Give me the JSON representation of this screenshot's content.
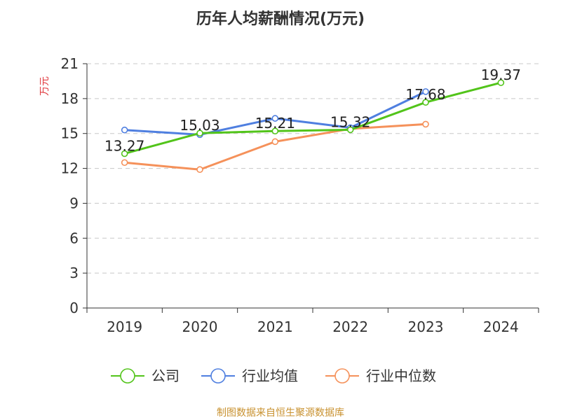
{
  "chart_data": {
    "type": "line",
    "title": "历年人均薪酬情况(万元)",
    "ylabel": "万元",
    "xlabel": "",
    "categories": [
      "2019",
      "2020",
      "2021",
      "2022",
      "2023",
      "2024"
    ],
    "ylim": [
      0,
      21
    ],
    "yticks": [
      0,
      3,
      6,
      9,
      12,
      15,
      18,
      21
    ],
    "grid": true,
    "legend_position": "bottom",
    "series": [
      {
        "name": "公司",
        "color": "#52c41a",
        "values": [
          13.27,
          15.03,
          15.21,
          15.32,
          17.68,
          19.37
        ],
        "labels": [
          "13.27",
          "15.03",
          "15.21",
          "15.32",
          "17.68",
          "19.37"
        ]
      },
      {
        "name": "行业均值",
        "color": "#4f7fe0",
        "values": [
          15.3,
          14.9,
          16.3,
          15.5,
          18.6,
          null
        ]
      },
      {
        "name": "行业中位数",
        "color": "#f5915a",
        "values": [
          12.5,
          11.9,
          14.3,
          15.4,
          15.8,
          null
        ]
      }
    ],
    "source": "制图数据来自恒生聚源数据库"
  }
}
